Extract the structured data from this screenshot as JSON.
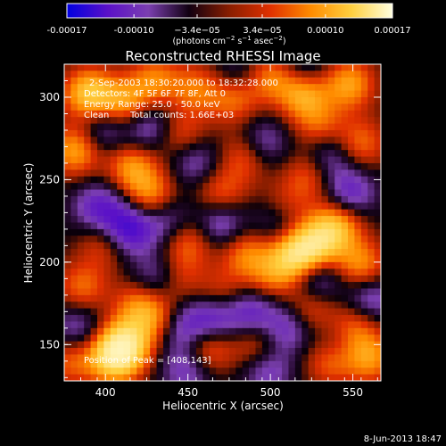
{
  "chart_data": {
    "type": "heatmap",
    "title": "Reconstructed RHESSI Image",
    "xlabel": "Heliocentric X (arcsec)",
    "ylabel": "Heliocentric Y (arcsec)",
    "xlim": [
      375,
      567
    ],
    "ylim": [
      128,
      320
    ],
    "x_ticks": [
      400,
      450,
      500,
      550
    ],
    "y_ticks": [
      150,
      200,
      250,
      300
    ],
    "colorbar": {
      "ticks": [
        {
          "value": -0.00017,
          "label": "-0.00017"
        },
        {
          "value": -0.0001,
          "label": "-0.00010"
        },
        {
          "value": -3.4e-05,
          "label": "−3.4e−05"
        },
        {
          "value": 3.4e-05,
          "label": "3.4e−05"
        },
        {
          "value": 0.0001,
          "label": "0.00010"
        },
        {
          "value": 0.00017,
          "label": "0.00017"
        }
      ],
      "range": [
        -0.00017,
        0.00017
      ],
      "colors": [
        "#0000e0",
        "#5a10c8",
        "#7b3fb0",
        "#110011",
        "#8a1e00",
        "#e03000",
        "#ff8c00",
        "#ffd040",
        "#ffffe0"
      ]
    },
    "annotations": {
      "time_range": "2-Sep-2003 18:30:20.000 to 18:32:28.000",
      "detectors": "Detectors: 4F 5F 6F 7F 8F, Att 0",
      "energy_range": "Energy Range: 25.0 - 50.0 keV",
      "clean_label": "Clean",
      "total_counts": "Total counts: 1.66E+03",
      "peak_position": "Position of Peak = [408,143]"
    },
    "peak": {
      "x": 408,
      "y": 143
    },
    "blobs": [
      {
        "x": 390,
        "y": 302,
        "v": 1.0
      },
      {
        "x": 382,
        "y": 268,
        "v": 0.8
      },
      {
        "x": 412,
        "y": 296,
        "v": 0.75
      },
      {
        "x": 416,
        "y": 258,
        "v": 0.7
      },
      {
        "x": 430,
        "y": 310,
        "v": 0.6
      },
      {
        "x": 455,
        "y": 305,
        "v": 0.55
      },
      {
        "x": 478,
        "y": 300,
        "v": 0.65
      },
      {
        "x": 500,
        "y": 312,
        "v": 0.6
      },
      {
        "x": 520,
        "y": 302,
        "v": 0.8
      },
      {
        "x": 548,
        "y": 308,
        "v": 0.75
      },
      {
        "x": 530,
        "y": 282,
        "v": 0.5
      },
      {
        "x": 447,
        "y": 276,
        "v": 0.5
      },
      {
        "x": 485,
        "y": 264,
        "v": 0.55
      },
      {
        "x": 428,
        "y": 240,
        "v": 0.7
      },
      {
        "x": 470,
        "y": 241,
        "v": 0.55
      },
      {
        "x": 523,
        "y": 252,
        "v": 0.5
      },
      {
        "x": 555,
        "y": 272,
        "v": 0.55
      },
      {
        "x": 508,
        "y": 232,
        "v": 0.5
      },
      {
        "x": 540,
        "y": 222,
        "v": 0.85
      },
      {
        "x": 527,
        "y": 210,
        "v": 0.9
      },
      {
        "x": 514,
        "y": 203,
        "v": 1.0
      },
      {
        "x": 555,
        "y": 198,
        "v": 0.7
      },
      {
        "x": 485,
        "y": 205,
        "v": 0.6
      },
      {
        "x": 450,
        "y": 212,
        "v": 0.55
      },
      {
        "x": 400,
        "y": 212,
        "v": 0.5
      },
      {
        "x": 386,
        "y": 185,
        "v": 0.55
      },
      {
        "x": 420,
        "y": 174,
        "v": 0.55
      },
      {
        "x": 412,
        "y": 150,
        "v": 1.0
      },
      {
        "x": 405,
        "y": 142,
        "v": 1.0
      },
      {
        "x": 432,
        "y": 165,
        "v": 0.6
      },
      {
        "x": 462,
        "y": 148,
        "v": 0.65
      },
      {
        "x": 470,
        "y": 180,
        "v": 0.45
      },
      {
        "x": 492,
        "y": 150,
        "v": 0.5
      },
      {
        "x": 524,
        "y": 172,
        "v": 0.5
      },
      {
        "x": 550,
        "y": 160,
        "v": 0.65
      },
      {
        "x": 560,
        "y": 142,
        "v": 0.7
      },
      {
        "x": 536,
        "y": 140,
        "v": 0.55
      },
      {
        "x": 443,
        "y": 190,
        "v": 0.45
      },
      {
        "x": 379,
        "y": 140,
        "v": 0.5
      },
      {
        "x": 500,
        "y": 190,
        "v": 0.45
      },
      {
        "x": 413,
        "y": 220,
        "v": -0.9
      },
      {
        "x": 396,
        "y": 233,
        "v": -0.6
      },
      {
        "x": 437,
        "y": 226,
        "v": -0.5
      },
      {
        "x": 470,
        "y": 224,
        "v": -0.6
      },
      {
        "x": 505,
        "y": 225,
        "v": -0.55
      },
      {
        "x": 454,
        "y": 262,
        "v": -0.5
      },
      {
        "x": 495,
        "y": 272,
        "v": -0.5
      },
      {
        "x": 548,
        "y": 242,
        "v": -0.6
      },
      {
        "x": 535,
        "y": 265,
        "v": -0.5
      },
      {
        "x": 398,
        "y": 280,
        "v": -0.5
      },
      {
        "x": 425,
        "y": 282,
        "v": -0.55
      },
      {
        "x": 480,
        "y": 312,
        "v": -0.4
      },
      {
        "x": 445,
        "y": 160,
        "v": -0.6
      },
      {
        "x": 465,
        "y": 166,
        "v": -0.7
      },
      {
        "x": 432,
        "y": 190,
        "v": -0.55
      },
      {
        "x": 488,
        "y": 170,
        "v": -0.6
      },
      {
        "x": 510,
        "y": 160,
        "v": -0.55
      },
      {
        "x": 528,
        "y": 190,
        "v": -0.6
      },
      {
        "x": 560,
        "y": 178,
        "v": -0.55
      },
      {
        "x": 383,
        "y": 160,
        "v": -0.45
      },
      {
        "x": 498,
        "y": 135,
        "v": -0.5
      },
      {
        "x": 450,
        "y": 135,
        "v": -0.5
      },
      {
        "x": 542,
        "y": 152,
        "v": -0.4
      },
      {
        "x": 520,
        "y": 318,
        "v": -0.4
      }
    ]
  },
  "footer": {
    "timestamp": "8-Jun-2013 18:47"
  }
}
